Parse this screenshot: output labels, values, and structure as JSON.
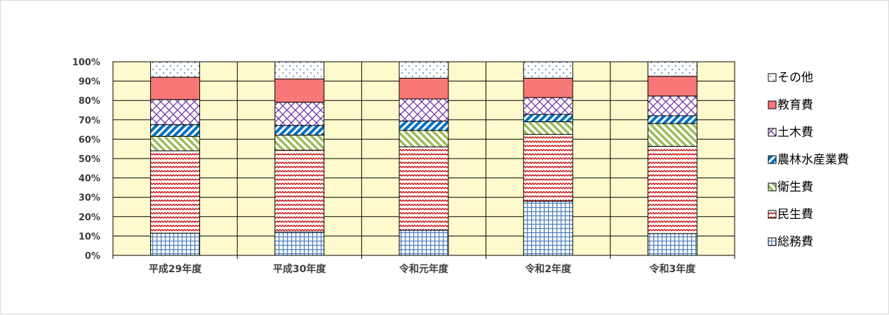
{
  "chart_data": {
    "type": "bar",
    "stacked": true,
    "percent_stacked": true,
    "categories": [
      "平成29年度",
      "平成30年度",
      "令和元年度",
      "令和2年度",
      "令和3年度"
    ],
    "series": [
      {
        "name": "総務費",
        "values": [
          11.5,
          12,
          13,
          28,
          11.3
        ],
        "color": "#4f81bd",
        "pattern": "grid"
      },
      {
        "name": "民生費",
        "values": [
          42.5,
          42.3,
          43,
          34.5,
          45
        ],
        "color": "#c00000",
        "pattern": "wave"
      },
      {
        "name": "衛生費",
        "values": [
          7.5,
          7.8,
          8.5,
          6.5,
          11.8
        ],
        "color": "#9bbb59",
        "pattern": "diagonal"
      },
      {
        "name": "農林水産業費",
        "values": [
          6,
          5,
          4.9,
          3.8,
          4
        ],
        "color": "#0070c0",
        "pattern": "diagonal-wide"
      },
      {
        "name": "土木費",
        "values": [
          13,
          12,
          11.4,
          8.7,
          10.2
        ],
        "color": "#7030a0",
        "pattern": "cross"
      },
      {
        "name": "教育費",
        "values": [
          11.5,
          12,
          10.7,
          10,
          10.2
        ],
        "color": "#f87878",
        "pattern": "solid"
      },
      {
        "name": "その他",
        "values": [
          8,
          8.9,
          8.5,
          8.5,
          7.5
        ],
        "color": "#1f4e99",
        "pattern": "dots"
      }
    ],
    "y_ticks": [
      "0%",
      "10%",
      "20%",
      "30%",
      "40%",
      "50%",
      "60%",
      "70%",
      "80%",
      "90%",
      "100%"
    ],
    "ylim": [
      0,
      100
    ],
    "grid": true,
    "plot_background": "#fffacd",
    "legend_position": "right",
    "legend_order": [
      "その他",
      "教育費",
      "土木費",
      "農林水産業費",
      "衛生費",
      "民生費",
      "総務費"
    ]
  }
}
